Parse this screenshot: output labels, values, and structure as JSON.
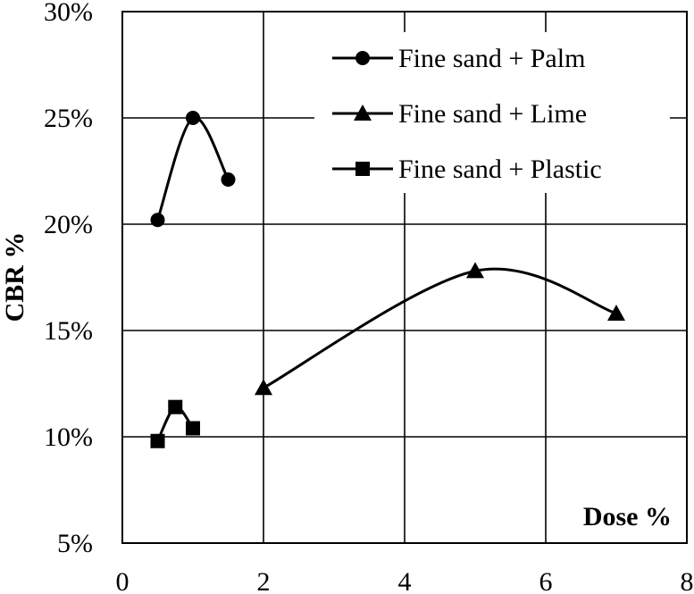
{
  "chart_data": {
    "type": "line",
    "xlabel": "Dose %",
    "ylabel": "CBR %",
    "xlim": [
      0,
      8
    ],
    "ylim": [
      5,
      30
    ],
    "x_ticks": [
      "0",
      "2",
      "4",
      "6",
      "8"
    ],
    "y_ticks": [
      "5%",
      "10%",
      "15%",
      "20%",
      "25%",
      "30%"
    ],
    "grid": true,
    "smooth": true,
    "legend_position": "top-right",
    "series": [
      {
        "name": "Fine sand + Palm",
        "marker": "circle",
        "color": "#000000",
        "x": [
          0.5,
          1.0,
          1.5
        ],
        "y": [
          20.2,
          25.0,
          22.1
        ]
      },
      {
        "name": "Fine sand + Lime",
        "marker": "triangle",
        "color": "#000000",
        "x": [
          2,
          5,
          7
        ],
        "y": [
          12.3,
          17.8,
          15.8
        ]
      },
      {
        "name": "Fine sand + Plastic",
        "marker": "square",
        "color": "#000000",
        "x": [
          0.5,
          0.75,
          1.0
        ],
        "y": [
          9.8,
          11.4,
          10.4
        ]
      }
    ]
  }
}
